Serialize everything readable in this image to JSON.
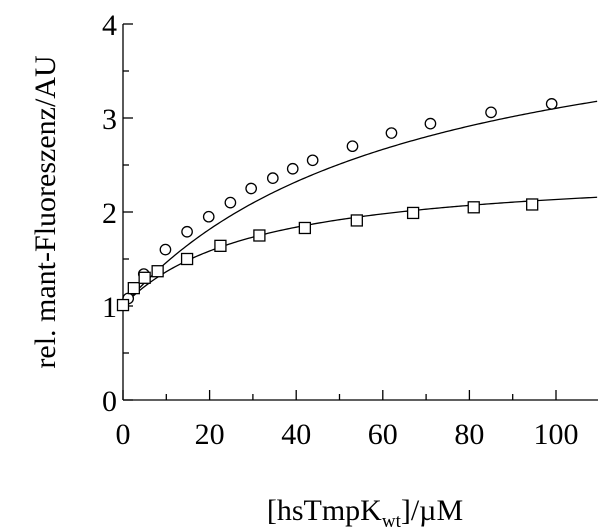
{
  "chart_data": {
    "type": "scatter",
    "title": "",
    "xlabel": {
      "main": "[hsTmpK",
      "sub": "wt",
      "tail": "]/µM"
    },
    "ylabel": "rel. mant-Fluoreszenz/AU",
    "xlim": [
      0,
      110
    ],
    "ylim": [
      0,
      4
    ],
    "x_ticks": [
      0,
      20,
      40,
      60,
      80,
      100
    ],
    "y_ticks": [
      0,
      1,
      2,
      3,
      4
    ],
    "x_tick_labels": [
      "0",
      "20",
      "40",
      "60",
      "80",
      "100"
    ],
    "y_tick_labels": [
      "0",
      "1",
      "2",
      "3",
      "4"
    ],
    "grid": false,
    "legend": "none",
    "series": [
      {
        "marker": "circle",
        "points": [
          [
            0,
            1.01
          ],
          [
            1.2,
            1.08
          ],
          [
            4.8,
            1.34
          ],
          [
            9.8,
            1.6
          ],
          [
            14.8,
            1.79
          ],
          [
            19.8,
            1.95
          ],
          [
            24.8,
            2.1
          ],
          [
            29.6,
            2.25
          ],
          [
            34.6,
            2.36
          ],
          [
            39.2,
            2.46
          ],
          [
            43.8,
            2.55
          ],
          [
            53,
            2.7
          ],
          [
            62,
            2.84
          ],
          [
            71,
            2.94
          ],
          [
            85,
            3.06
          ],
          [
            99,
            3.15
          ]
        ],
        "fit": {
          "model": "hyperbolic",
          "y0": 1.0,
          "amplitude": 3.47,
          "k": 65
        }
      },
      {
        "marker": "square",
        "points": [
          [
            0,
            1.01
          ],
          [
            2.5,
            1.19
          ],
          [
            5,
            1.3
          ],
          [
            8,
            1.37
          ],
          [
            14.8,
            1.5
          ],
          [
            22.5,
            1.64
          ],
          [
            31.5,
            1.75
          ],
          [
            42,
            1.83
          ],
          [
            54,
            1.91
          ],
          [
            67,
            1.99
          ],
          [
            81,
            2.05
          ],
          [
            94.5,
            2.08
          ]
        ],
        "fit": {
          "model": "hyperbolic",
          "y0": 1.0,
          "amplitude": 1.48,
          "k": 30.6
        }
      }
    ]
  }
}
